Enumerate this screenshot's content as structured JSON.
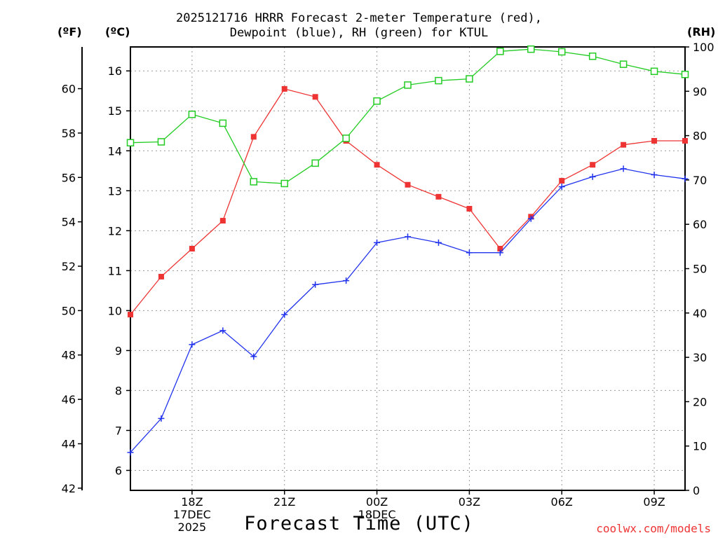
{
  "chart_data": {
    "type": "line",
    "title_lines": [
      "2025121716 HRRR Forecast 2-meter Temperature (red),",
      "Dewpoint (blue), RH (green) for KTUL"
    ],
    "xlabel": "Forecast Time (UTC)",
    "credit": "coolwx.com/models",
    "colors": {
      "temperature": "#ee3333",
      "dewpoint": "#2233ee",
      "rh": "#22cc22",
      "grid": "#999999"
    },
    "x_hours": [
      0,
      1,
      2,
      3,
      4,
      5,
      6,
      7,
      8,
      9,
      10,
      11,
      12,
      13,
      14,
      15,
      16,
      17,
      18
    ],
    "x_ticks": [
      {
        "hour": 2,
        "lines": [
          "18Z",
          "17DEC",
          "2025"
        ]
      },
      {
        "hour": 5,
        "lines": [
          "21Z"
        ]
      },
      {
        "hour": 8,
        "lines": [
          "00Z",
          "18DEC"
        ]
      },
      {
        "hour": 11,
        "lines": [
          "03Z"
        ]
      },
      {
        "hour": 14,
        "lines": [
          "06Z"
        ]
      },
      {
        "hour": 17,
        "lines": [
          "09Z"
        ]
      }
    ],
    "celsius_axis": {
      "unit_label": "(ºC)",
      "ylim": [
        5.5,
        16.6
      ],
      "ticks": [
        6,
        7,
        8,
        9,
        10,
        11,
        12,
        13,
        14,
        15,
        16
      ]
    },
    "fahrenheit_axis": {
      "unit_label": "(ºF)",
      "ticks": [
        42,
        44,
        46,
        48,
        50,
        52,
        54,
        56,
        58,
        60
      ]
    },
    "rh_axis": {
      "unit_label": "(RH)",
      "ylim": [
        0,
        100
      ],
      "ticks": [
        0,
        10,
        20,
        30,
        40,
        50,
        60,
        70,
        80,
        90,
        100
      ]
    },
    "series": [
      {
        "name": "Temperature",
        "axis": "celsius",
        "marker": "filled-square",
        "values": [
          9.9,
          10.85,
          11.55,
          12.25,
          14.35,
          15.55,
          15.35,
          14.25,
          13.65,
          13.15,
          12.85,
          12.55,
          11.55,
          12.35,
          13.25,
          13.65,
          14.15,
          14.25,
          14.25
        ]
      },
      {
        "name": "Dewpoint",
        "axis": "celsius",
        "marker": "plus",
        "values": [
          6.45,
          7.3,
          9.15,
          9.5,
          8.85,
          9.9,
          10.65,
          10.75,
          11.7,
          11.85,
          11.7,
          11.45,
          11.45,
          12.3,
          13.1,
          13.35,
          13.55,
          13.4,
          13.3
        ]
      },
      {
        "name": "RH",
        "axis": "rh",
        "marker": "open-square",
        "values": [
          78.4,
          78.6,
          84.8,
          82.8,
          69.6,
          69.2,
          73.8,
          79.4,
          87.8,
          91.4,
          92.4,
          92.8,
          99.0,
          99.5,
          98.9,
          97.9,
          96.1,
          94.5,
          93.8
        ]
      }
    ]
  }
}
